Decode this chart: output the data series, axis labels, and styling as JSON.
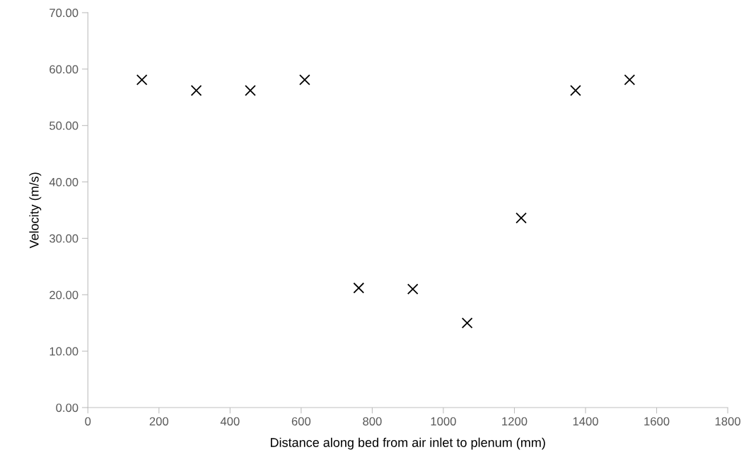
{
  "chart_data": {
    "type": "scatter",
    "xlabel": "Distance along bed from air inlet to plenum (mm)",
    "ylabel": "Velocity (m/s)",
    "x": [
      152,
      305,
      457,
      610,
      762,
      914,
      1067,
      1219,
      1372,
      1524
    ],
    "series": [
      {
        "color": "#000000",
        "values": [
          58.1,
          56.2,
          56.2,
          58.1,
          21.2,
          21.0,
          15.0,
          33.6,
          56.2,
          58.1
        ]
      }
    ],
    "xlim": [
      0,
      1800
    ],
    "xticks": [
      0,
      200,
      400,
      600,
      800,
      1000,
      1200,
      1400,
      1600,
      1800
    ],
    "ylim": [
      0,
      70
    ],
    "yticks": [
      {
        "value": 0,
        "label": "0.00"
      },
      {
        "value": 10,
        "label": "10.00"
      },
      {
        "value": 20,
        "label": "20.00"
      },
      {
        "value": 30,
        "label": "30.00"
      },
      {
        "value": 40,
        "label": "40.00"
      },
      {
        "value": 50,
        "label": "50.00"
      },
      {
        "value": 60,
        "label": "60.00"
      },
      {
        "value": 70,
        "label": "70.00"
      }
    ],
    "grid": false,
    "marker": "cross"
  }
}
